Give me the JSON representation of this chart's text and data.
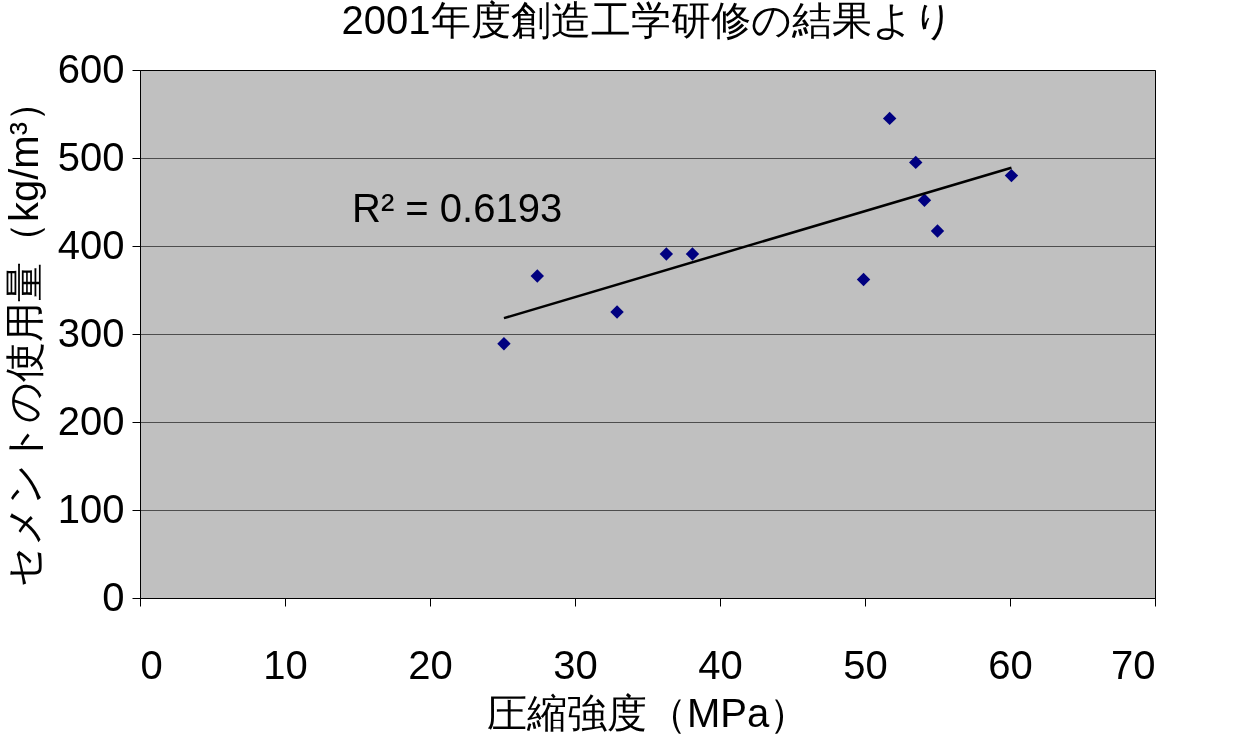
{
  "chart_data": {
    "type": "scatter",
    "title": "2001年度創造工学研修の結果より",
    "xlabel": "圧縮強度（MPa）",
    "ylabel": "セメントの使用量（kg/m³）",
    "xlim": [
      0,
      70
    ],
    "xticks": [
      0,
      10,
      20,
      30,
      40,
      50,
      60,
      70
    ],
    "ylim": [
      0,
      600
    ],
    "yticks": [
      0,
      100,
      200,
      300,
      400,
      500,
      600
    ],
    "grid": "y",
    "legend": false,
    "series": [
      {
        "color": "#000080",
        "marker": "diamond",
        "x": [
          25.1,
          27.4,
          32.9,
          36.3,
          38.1,
          49.9,
          51.7,
          53.5,
          54.1,
          55.0,
          60.1
        ],
        "values": [
          289,
          366,
          325,
          391,
          391,
          362,
          545,
          495,
          452,
          417,
          480
        ]
      },
      {
        "type": "line",
        "color": "#000000",
        "x": [
          25.1,
          60.1
        ],
        "values": [
          318,
          489
        ]
      }
    ],
    "annotations": [
      "R² = 0.6193"
    ]
  }
}
